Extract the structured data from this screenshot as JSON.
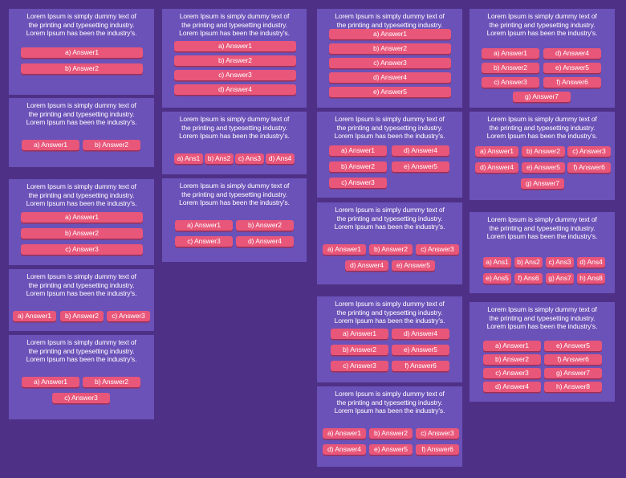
{
  "question_text": "Lorem Ipsum is simply dummy text of the printing and typesetting industry. Lorem Ipsum has been the industry's.",
  "question_lines": [
    "Lorem Ipsum is simply dummy text of",
    "the printing and typesetting industry.",
    "Lorem Ipsum has been the industry's."
  ],
  "colors": {
    "background": "#4e3187",
    "card": "#6b52b8",
    "button": "#e8567a",
    "button_shadow": "#9e2f55",
    "text": "#ffffff"
  },
  "cards": [
    {
      "id": "c1",
      "answers": [
        "a) Answer1",
        "b) Answer2"
      ]
    },
    {
      "id": "c2",
      "answers": [
        "a) Answer1",
        "b) Answer2"
      ]
    },
    {
      "id": "c3",
      "answers": [
        "a) Answer1",
        "b) Answer2",
        "c) Answer3"
      ]
    },
    {
      "id": "c4",
      "answers": [
        "a) Answer1",
        "b) Answer2",
        "c) Answer3"
      ]
    },
    {
      "id": "c5",
      "answers": [
        "a) Answer1",
        "b) Answer2",
        "c) Answer3"
      ]
    },
    {
      "id": "c6",
      "answers": [
        "a) Answer1",
        "b) Answer2",
        "c) Answer3",
        "d) Answer4"
      ]
    },
    {
      "id": "c7",
      "answers": [
        "a) Ans1",
        "b) Ans2",
        "c) Ans3",
        "d) Ans4"
      ]
    },
    {
      "id": "c8",
      "answers": [
        "a) Answer1",
        "b) Answer2",
        "c) Answer3",
        "d) Answer4"
      ]
    },
    {
      "id": "c9",
      "answers": [
        "a) Answer1",
        "b) Answer2",
        "c) Answer3",
        "d) Answer4",
        "e) Answer5"
      ]
    },
    {
      "id": "c10",
      "answers": [
        "a) Answer1",
        "d) Answer4",
        "b) Answer2",
        "e) Answer5",
        "c) Answer3"
      ]
    },
    {
      "id": "c11",
      "answers": [
        "a) Answer1",
        "b) Answer2",
        "c) Answer3",
        "d) Answer4",
        "e) Answer5"
      ]
    },
    {
      "id": "c12",
      "answers": [
        "a) Answer1",
        "d) Answer4",
        "b) Answer2",
        "e) Answer5",
        "c) Answer3",
        "f) Answer6"
      ]
    },
    {
      "id": "c13",
      "answers": [
        "a) Answer1",
        "b) Answer2",
        "c) Answer3",
        "d) Answer4",
        "e) Answer5",
        "f) Answer6"
      ]
    },
    {
      "id": "c14",
      "answers": [
        "a) Answer1",
        "d) Answer4",
        "b) Answer2",
        "e) Answer5",
        "c) Answer3",
        "f) Answer6",
        "g) Answer7"
      ]
    },
    {
      "id": "c15",
      "answers": [
        "a) Answer1",
        "b) Answer2",
        "c) Answer3",
        "d) Answer4",
        "e) Answer5",
        "f) Answer6",
        "g) Answer7"
      ]
    },
    {
      "id": "c16",
      "answers": [
        "a) Ans1",
        "b) Ans2",
        "c) Ans3",
        "d) Ans4",
        "e) Ans5",
        "f) Ans6",
        "g) Ans7",
        "h) Ans8"
      ]
    },
    {
      "id": "c17",
      "answers": [
        "a) Answer1",
        "e) Answer5",
        "b) Answer2",
        "f) Answer6",
        "c) Answer3",
        "g) Answer7",
        "d) Answer4",
        "h) Answer8"
      ]
    }
  ]
}
